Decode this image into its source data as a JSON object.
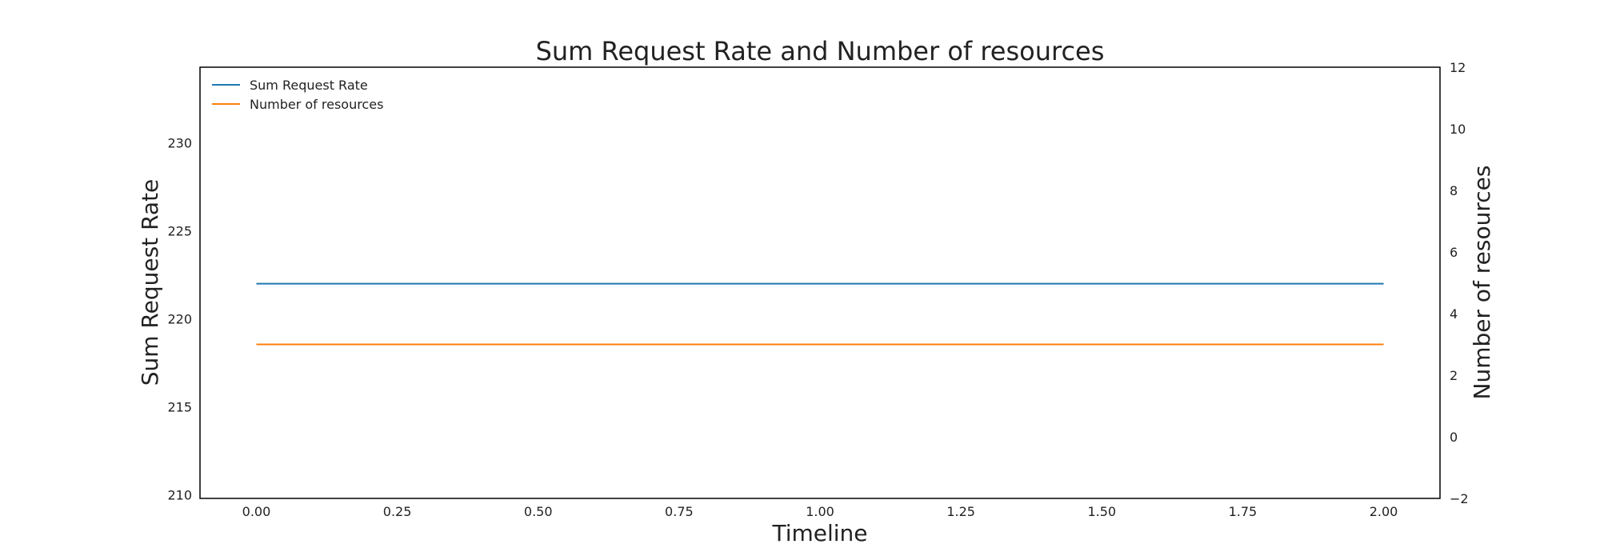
{
  "chart_data": {
    "type": "line",
    "title": "Sum Request Rate and Number of resources",
    "xlabel": "Timeline",
    "ylabel_left": "Sum Request Rate",
    "ylabel_right": "Number of resources",
    "x": [
      0.0,
      1.0,
      2.0
    ],
    "xlim": [
      -0.1,
      2.1
    ],
    "xticks": [
      0.0,
      0.25,
      0.5,
      0.75,
      1.0,
      1.25,
      1.5,
      1.75,
      2.0
    ],
    "xtick_labels": [
      "0.00",
      "0.25",
      "0.50",
      "0.75",
      "1.00",
      "1.25",
      "1.50",
      "1.75",
      "2.00"
    ],
    "ylim_left": [
      209.8,
      234.3
    ],
    "yticks_left": [
      210,
      215,
      220,
      225,
      230
    ],
    "ytick_labels_left": [
      "210",
      "215",
      "220",
      "225",
      "230"
    ],
    "ylim_right": [
      -2,
      12
    ],
    "yticks_right": [
      -2,
      0,
      2,
      4,
      6,
      8,
      10,
      12
    ],
    "ytick_labels_right": [
      "−2",
      "0",
      "2",
      "4",
      "6",
      "8",
      "10",
      "12"
    ],
    "series": [
      {
        "name": "Sum Request Rate",
        "axis": "left",
        "color": "#1f77b4",
        "values": [
          222,
          222,
          222
        ]
      },
      {
        "name": "Number of resources",
        "axis": "right",
        "color": "#ff7f0e",
        "values": [
          3,
          3,
          3
        ]
      }
    ],
    "grid": false,
    "legend_position": "top-left"
  }
}
